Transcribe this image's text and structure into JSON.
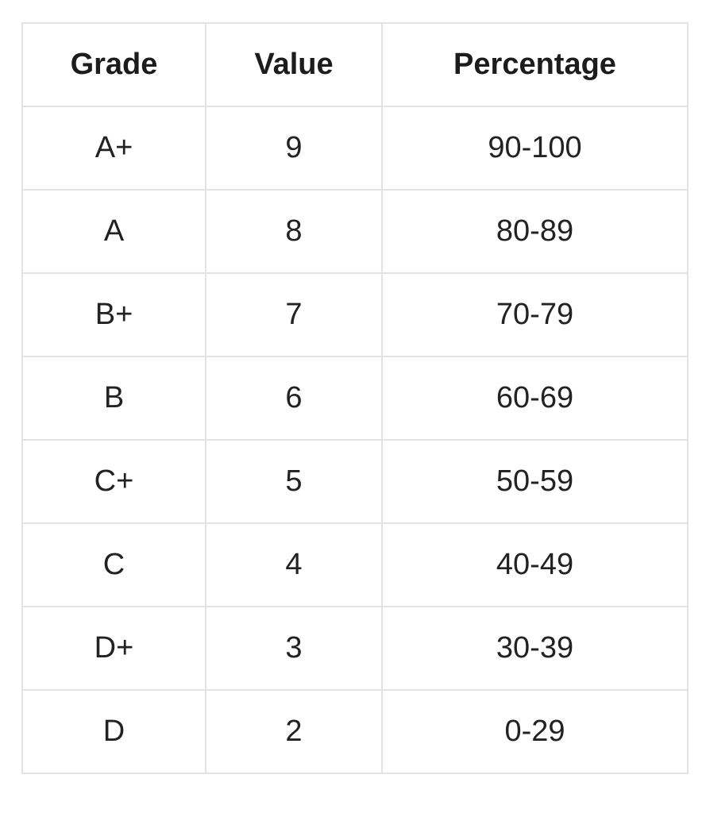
{
  "table": {
    "headers": [
      "Grade",
      "Value",
      "Percentage"
    ],
    "rows": [
      [
        "A+",
        "9",
        "90-100"
      ],
      [
        "A",
        "8",
        "80-89"
      ],
      [
        "B+",
        "7",
        "70-79"
      ],
      [
        "B",
        "6",
        "60-69"
      ],
      [
        "C+",
        "5",
        "50-59"
      ],
      [
        "C",
        "4",
        "40-49"
      ],
      [
        "D+",
        "3",
        "30-39"
      ],
      [
        "D",
        "2",
        "0-29"
      ]
    ]
  }
}
